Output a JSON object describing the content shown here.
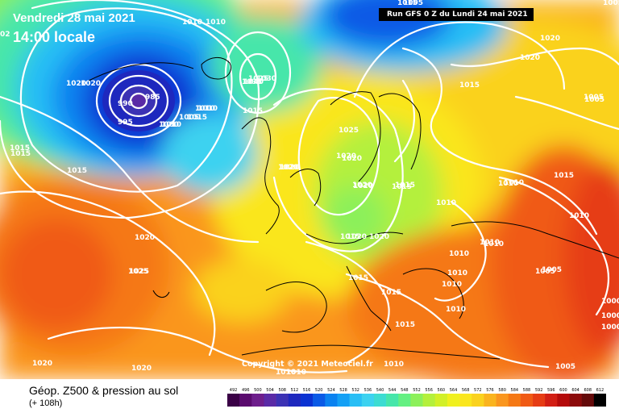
{
  "header": {
    "date": "Vendredi 28 mai 2021",
    "time": "14:00 locale",
    "edge_label": "02",
    "run": "Run GFS 0 Z du Lundi 24 mai 2021"
  },
  "copyright": "Copyright © 2021 Meteociel.fr",
  "footer": {
    "title": "Géop. Z500 & pression au sol",
    "subtitle": "(+ 108h)"
  },
  "legend": {
    "values": [
      "492",
      "496",
      "500",
      "504",
      "508",
      "512",
      "516",
      "520",
      "524",
      "528",
      "532",
      "536",
      "540",
      "544",
      "548",
      "552",
      "556",
      "560",
      "564",
      "568",
      "572",
      "576",
      "580",
      "584",
      "588",
      "592",
      "596",
      "600",
      "604",
      "608",
      "612"
    ],
    "colors": [
      "#3a0046",
      "#5a0a6e",
      "#6e1e8c",
      "#5a2aa6",
      "#3c32b4",
      "#1e28be",
      "#0a32d2",
      "#0a5ae6",
      "#0a82f0",
      "#14a0f5",
      "#28bef5",
      "#3cd2f0",
      "#3cdcd2",
      "#46e6aa",
      "#64f082",
      "#8cf05a",
      "#b4f03c",
      "#d2f028",
      "#f0f01e",
      "#fae61e",
      "#fad21e",
      "#fab41e",
      "#fa961e",
      "#f57814",
      "#f05a14",
      "#e63c14",
      "#d21e14",
      "#b40a0a",
      "#8c0a0a",
      "#640a0a",
      "#000000"
    ]
  },
  "pressure_labels": [
    "1005",
    "1005",
    "1010",
    "1010",
    "1015",
    "1015",
    "1020",
    "1020",
    "1025",
    "1030",
    "1035",
    "1040",
    "1020",
    "1020",
    "1015",
    "1005",
    "1010",
    "1015",
    "1010",
    "990",
    "985",
    "995",
    "1000",
    "1005",
    "1010",
    "1015",
    "1020",
    "1015",
    "1025",
    "1020",
    "1015",
    "1010",
    "1015",
    "1020",
    "1015",
    "1025",
    "1020",
    "1020",
    "1015",
    "1020",
    "1010",
    "1010",
    "1015",
    "1020",
    "1010",
    "1010",
    "1015",
    "1010",
    "1005",
    "1010",
    "1015",
    "1010",
    "1010",
    "1010",
    "1005",
    "1005",
    "1010",
    "1015",
    "1015",
    "1020",
    "1025",
    "1020",
    "1020",
    "1020",
    "1010",
    "1010",
    "1005",
    "1000",
    "1000",
    "1000"
  ]
}
